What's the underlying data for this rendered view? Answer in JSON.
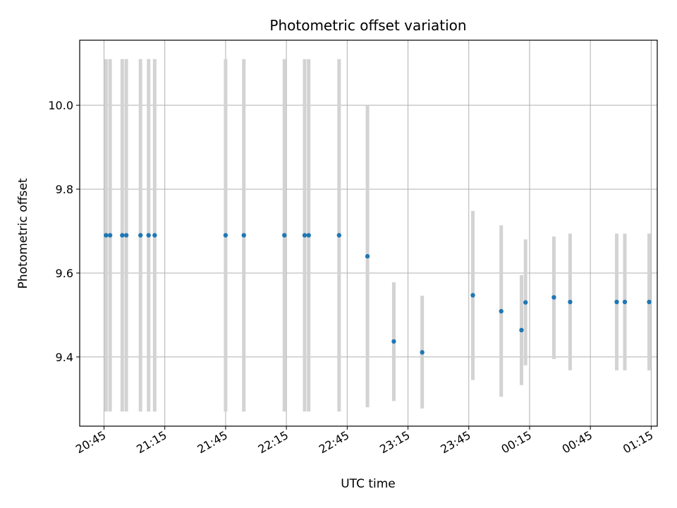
{
  "chart_data": {
    "type": "scatter",
    "title": "Photometric offset variation",
    "xlabel": "UTC time",
    "ylabel": "Photometric offset",
    "grid": true,
    "x_ticks": [
      "20:45",
      "21:15",
      "21:45",
      "22:15",
      "22:45",
      "23:15",
      "23:45",
      "00:15",
      "00:45",
      "01:15"
    ],
    "y_ticks": [
      9.4,
      9.6,
      9.8,
      10.0
    ],
    "y_tick_labels": [
      "9.4",
      "9.6",
      "9.8",
      "10.0"
    ],
    "xlim": [
      "20:33",
      "01:18"
    ],
    "ylim": [
      9.235,
      10.155
    ],
    "colors": {
      "point": "#1f77b4",
      "errorbar": "#d3d3d3",
      "grid": "#b0b0b0"
    },
    "series": [
      {
        "points": [
          {
            "x": "20:46",
            "y": 9.69,
            "ylow": 9.27,
            "yhigh": 10.11
          },
          {
            "x": "20:48",
            "y": 9.69,
            "ylow": 9.27,
            "yhigh": 10.11
          },
          {
            "x": "20:54",
            "y": 9.69,
            "ylow": 9.27,
            "yhigh": 10.11
          },
          {
            "x": "20:56",
            "y": 9.69,
            "ylow": 9.27,
            "yhigh": 10.11
          },
          {
            "x": "21:03",
            "y": 9.69,
            "ylow": 9.27,
            "yhigh": 10.11
          },
          {
            "x": "21:07",
            "y": 9.69,
            "ylow": 9.27,
            "yhigh": 10.11
          },
          {
            "x": "21:10",
            "y": 9.69,
            "ylow": 9.27,
            "yhigh": 10.11
          },
          {
            "x": "21:45",
            "y": 9.69,
            "ylow": 9.27,
            "yhigh": 10.11
          },
          {
            "x": "21:54",
            "y": 9.69,
            "ylow": 9.27,
            "yhigh": 10.11
          },
          {
            "x": "22:14",
            "y": 9.69,
            "ylow": 9.27,
            "yhigh": 10.11
          },
          {
            "x": "22:24",
            "y": 9.69,
            "ylow": 9.27,
            "yhigh": 10.11
          },
          {
            "x": "22:26",
            "y": 9.69,
            "ylow": 9.27,
            "yhigh": 10.11
          },
          {
            "x": "22:41",
            "y": 9.69,
            "ylow": 9.27,
            "yhigh": 10.11
          },
          {
            "x": "22:55",
            "y": 9.64,
            "ylow": 9.28,
            "yhigh": 10.0
          },
          {
            "x": "23:08",
            "y": 9.437,
            "ylow": 9.295,
            "yhigh": 9.578
          },
          {
            "x": "23:22",
            "y": 9.411,
            "ylow": 9.277,
            "yhigh": 9.546
          },
          {
            "x": "23:47",
            "y": 9.547,
            "ylow": 9.345,
            "yhigh": 9.748
          },
          {
            "x": "24:01",
            "y": 9.509,
            "ylow": 9.305,
            "yhigh": 9.714
          },
          {
            "x": "24:11",
            "y": 9.464,
            "ylow": 9.333,
            "yhigh": 9.595
          },
          {
            "x": "24:13",
            "y": 9.53,
            "ylow": 9.38,
            "yhigh": 9.68
          },
          {
            "x": "24:27",
            "y": 9.542,
            "ylow": 9.395,
            "yhigh": 9.687
          },
          {
            "x": "24:35",
            "y": 9.531,
            "ylow": 9.368,
            "yhigh": 9.694
          },
          {
            "x": "24:58",
            "y": 9.531,
            "ylow": 9.368,
            "yhigh": 9.694
          },
          {
            "x": "25:02",
            "y": 9.531,
            "ylow": 9.368,
            "yhigh": 9.694
          },
          {
            "x": "25:14",
            "y": 9.531,
            "ylow": 9.368,
            "yhigh": 9.694
          }
        ]
      }
    ]
  }
}
